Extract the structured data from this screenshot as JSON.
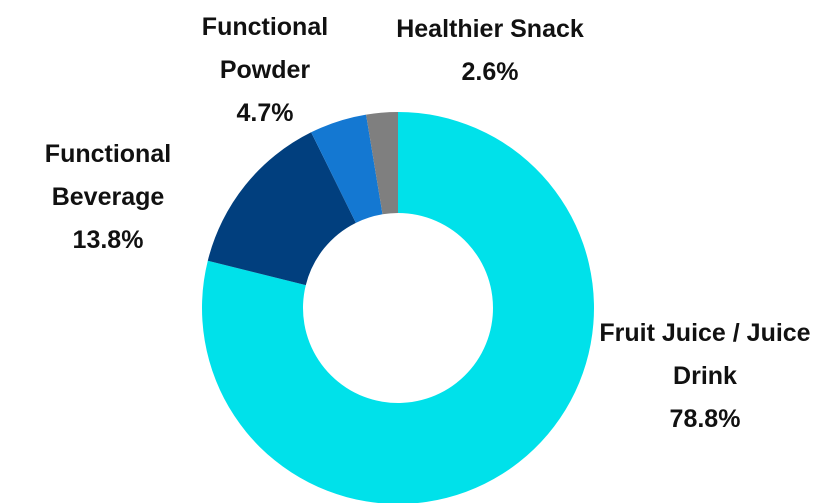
{
  "chart_data": {
    "type": "donut",
    "categories": [
      "Fruit Juice / Juice Drink",
      "Functional Beverage",
      "Functional Powder",
      "Healthier Snack"
    ],
    "values": [
      78.8,
      13.8,
      4.7,
      2.6
    ],
    "value_labels": [
      "78.8%",
      "13.8%",
      "4.7%",
      "2.6%"
    ],
    "colors": [
      "#00e1ea",
      "#013f7e",
      "#1478d2",
      "#7f7f7f"
    ]
  }
}
